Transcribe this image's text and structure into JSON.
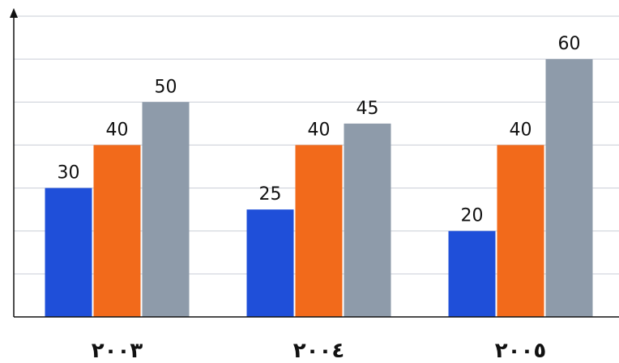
{
  "chart_data": {
    "type": "bar",
    "categories": [
      "٢٠٠٣",
      "٢٠٠٤",
      "٢٠٠٥"
    ],
    "series": [
      {
        "values": [
          30,
          25,
          20
        ],
        "color": "#1f4fd9"
      },
      {
        "values": [
          40,
          40,
          40
        ],
        "color": "#f26a1b"
      },
      {
        "values": [
          50,
          45,
          60
        ],
        "color": "#8e9baa"
      }
    ],
    "data_labels": true,
    "ylim": [
      0,
      70
    ],
    "grid": true,
    "legend": "none"
  }
}
